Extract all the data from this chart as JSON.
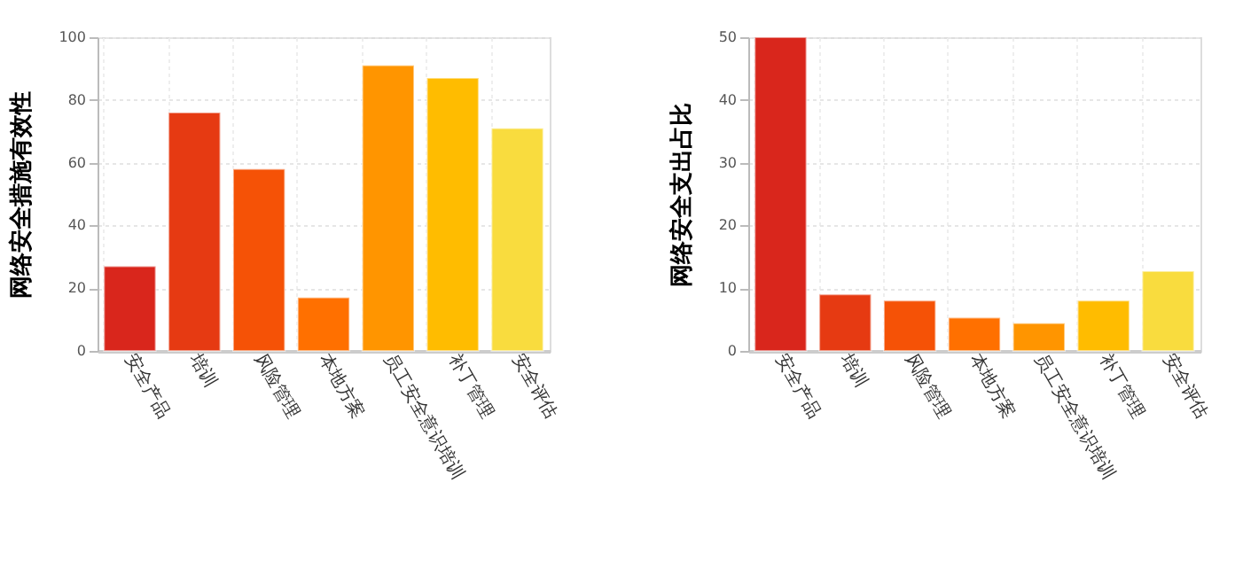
{
  "chart_data": [
    {
      "type": "bar",
      "ylabel": "网络安全措施有效性",
      "categories": [
        "安全产品",
        "培训",
        "风险管理",
        "本地方案",
        "员工安全意识培训",
        "补丁管理",
        "安全评估"
      ],
      "values": [
        27,
        76,
        58,
        17,
        91,
        87,
        71
      ],
      "colors": [
        "#d9261c",
        "#e63a12",
        "#f55206",
        "#ff7000",
        "#ff9500",
        "#ffbc00",
        "#f9dc3e"
      ],
      "ylim": [
        0,
        100
      ],
      "yticks": [
        0,
        20,
        40,
        60,
        80,
        100
      ],
      "grid": true,
      "legend": false
    },
    {
      "type": "bar",
      "ylabel": "网络安全支出占比",
      "categories": [
        "安全产品",
        "培训",
        "风险管理",
        "本地方案",
        "员工安全意识培训",
        "补丁管理",
        "安全评估"
      ],
      "values": [
        50,
        9,
        8,
        5.3,
        4.4,
        8,
        12.7
      ],
      "colors": [
        "#d9261c",
        "#e63a12",
        "#f55206",
        "#ff7000",
        "#ff9500",
        "#ffbc00",
        "#f9dc3e"
      ],
      "ylim": [
        0,
        50
      ],
      "yticks": [
        0,
        10,
        20,
        30,
        40,
        50
      ],
      "grid": true,
      "legend": false
    }
  ]
}
